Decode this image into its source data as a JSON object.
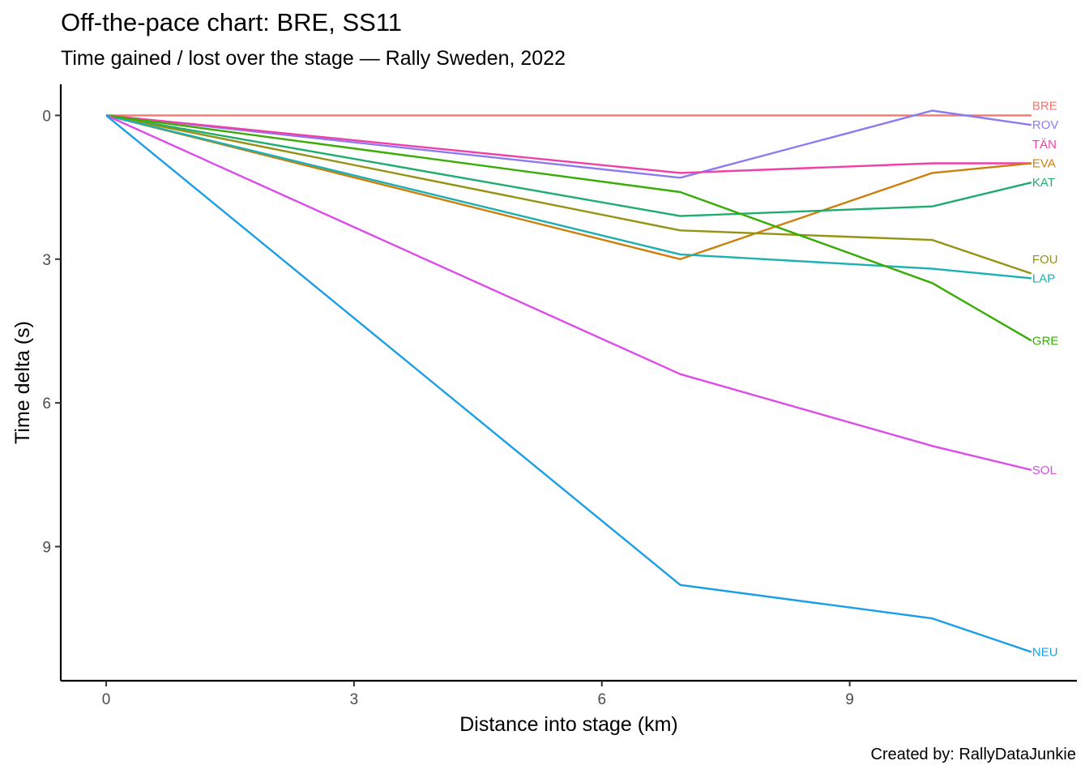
{
  "chart_data": {
    "type": "line",
    "title": "Off-the-pace chart: BRE, SS11",
    "subtitle": "Time gained / lost over the stage — Rally Sweden, 2022",
    "caption": "Created by: RallyDataJunkie",
    "xlabel": "Distance into stage (km)",
    "ylabel": "Time delta (s)",
    "xlim": [
      -0.55,
      11.75
    ],
    "ylim": [
      -0.65,
      11.8
    ],
    "y_reversed": true,
    "x_ticks": [
      0,
      3,
      6,
      9
    ],
    "y_ticks": [
      0,
      3,
      6,
      9
    ],
    "grid": false,
    "legend": "none",
    "x": [
      0,
      6.95,
      10,
      11.2
    ],
    "series": [
      {
        "name": "BRE",
        "color": "#F8766D",
        "values": [
          0,
          0,
          0,
          0
        ]
      },
      {
        "name": "ROV",
        "color": "#8B7BF2",
        "values": [
          0,
          1.3,
          -0.1,
          0.2
        ]
      },
      {
        "name": "TÄN",
        "color": "#F03FA8",
        "values": [
          0,
          1.2,
          1.0,
          1.0
        ]
      },
      {
        "name": "EVA",
        "color": "#CD7F0B",
        "values": [
          0,
          3.0,
          1.2,
          1.0
        ]
      },
      {
        "name": "KAT",
        "color": "#1FAD6E",
        "values": [
          0,
          2.1,
          1.9,
          1.4
        ]
      },
      {
        "name": "FOU",
        "color": "#949312",
        "values": [
          0,
          2.4,
          2.6,
          3.3
        ]
      },
      {
        "name": "LAP",
        "color": "#1DB0B0",
        "values": [
          0,
          2.9,
          3.2,
          3.4
        ]
      },
      {
        "name": "GRE",
        "color": "#39AC06",
        "values": [
          0,
          1.6,
          3.5,
          4.7
        ]
      },
      {
        "name": "SOL",
        "color": "#DD4BEB",
        "values": [
          0,
          5.4,
          6.9,
          7.4
        ]
      },
      {
        "name": "NEU",
        "color": "#1B9EE8",
        "values": [
          0,
          9.8,
          10.5,
          11.2
        ]
      }
    ],
    "label_y": {
      "BRE": -0.2,
      "ROV": 0.2,
      "TÄN": 0.6,
      "EVA": 1.0,
      "KAT": 1.4,
      "FOU": 3.0,
      "LAP": 3.4,
      "GRE": 4.7,
      "SOL": 7.4,
      "NEU": 11.2
    }
  }
}
